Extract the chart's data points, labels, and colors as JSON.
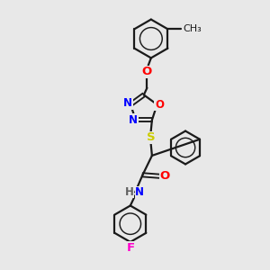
{
  "background_color": "#e8e8e8",
  "line_color": "#1a1a1a",
  "atom_colors": {
    "N": "#0000ff",
    "O": "#ff0000",
    "S": "#cccc00",
    "F": "#ff00cc",
    "H": "#606060",
    "C": "#1a1a1a"
  },
  "line_width": 1.6,
  "font_size": 8.5,
  "fig_width": 3.0,
  "fig_height": 3.0,
  "dpi": 100
}
